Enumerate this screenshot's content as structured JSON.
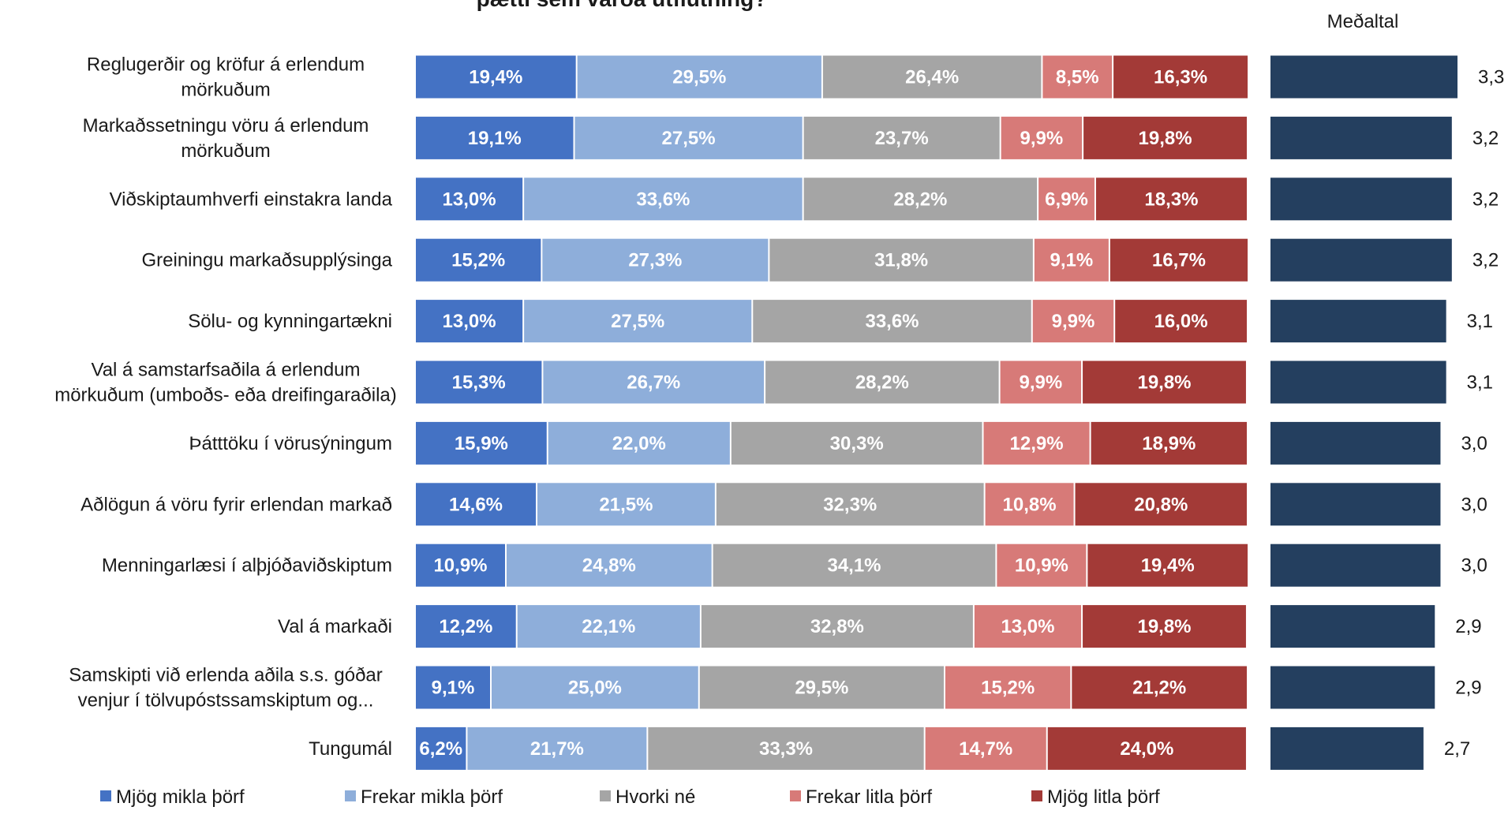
{
  "chart_data": [
    {
      "type": "bar",
      "orientation": "horizontal",
      "stacked": true,
      "normalized": true,
      "title": "þætti sem varða útflutning?",
      "categories": [
        [
          "Reglugerðir og kröfur á erlendum",
          "mörkuðum"
        ],
        [
          "Markaðssetningu vöru á erlendum",
          "mörkuðum"
        ],
        [
          "Viðskiptaumhverfi  einstakra landa"
        ],
        [
          "Greiningu markaðsupplýsinga"
        ],
        [
          "Sölu- og kynningartækni"
        ],
        [
          "Val á samstarfsaðila á erlendum",
          "mörkuðum (umboðs- eða dreifingaraðila)"
        ],
        [
          "Þátttöku í vörusýningum"
        ],
        [
          "Aðlögun á vöru fyrir erlendan markað"
        ],
        [
          "Menningarlæsi í alþjóðaviðskiptum"
        ],
        [
          "Val á markaði"
        ],
        [
          "Samskipti við erlenda aðila s.s. góðar",
          "venjur í tölvupóstssamskiptum og..."
        ],
        [
          "Tungumál"
        ]
      ],
      "series": [
        {
          "name": "Mjög mikla þörf",
          "color": "#4472C4",
          "values": [
            19.4,
            19.1,
            13.0,
            15.2,
            13.0,
            15.3,
            15.9,
            14.6,
            10.9,
            12.2,
            9.1,
            6.2
          ],
          "labels": [
            "19,4%",
            "19,1%",
            "13,0%",
            "15,2%",
            "13,0%",
            "15,3%",
            "15,9%",
            "14,6%",
            "10,9%",
            "12,2%",
            "9,1%",
            "6,2%"
          ]
        },
        {
          "name": "Frekar mikla þörf",
          "color": "#8EAEDA",
          "values": [
            29.5,
            27.5,
            33.6,
            27.3,
            27.5,
            26.7,
            22.0,
            21.5,
            24.8,
            22.1,
            25.0,
            21.7
          ],
          "labels": [
            "29,5%",
            "27,5%",
            "33,6%",
            "27,3%",
            "27,5%",
            "26,7%",
            "22,0%",
            "21,5%",
            "24,8%",
            "22,1%",
            "25,0%",
            "21,7%"
          ]
        },
        {
          "name": "Hvorki né",
          "color": "#A5A5A5",
          "values": [
            26.4,
            23.7,
            28.2,
            31.8,
            33.6,
            28.2,
            30.3,
            32.3,
            34.1,
            32.8,
            29.5,
            33.3
          ],
          "labels": [
            "26,4%",
            "23,7%",
            "28,2%",
            "31,8%",
            "33,6%",
            "28,2%",
            "30,3%",
            "32,3%",
            "34,1%",
            "32,8%",
            "29,5%",
            "33,3%"
          ]
        },
        {
          "name": "Frekar litla þörf",
          "color": "#D77A78",
          "values": [
            8.5,
            9.9,
            6.9,
            9.1,
            9.9,
            9.9,
            12.9,
            10.8,
            10.9,
            13.0,
            15.2,
            14.7
          ],
          "labels": [
            "8,5%",
            "9,9%",
            "6,9%",
            "9,1%",
            "9,9%",
            "9,9%",
            "12,9%",
            "10,8%",
            "10,9%",
            "13,0%",
            "15,2%",
            "14,7%"
          ]
        },
        {
          "name": "Mjög litla þörf",
          "color": "#A33A37",
          "values": [
            16.3,
            19.8,
            18.3,
            16.7,
            16.0,
            19.8,
            18.9,
            20.8,
            19.4,
            19.8,
            21.2,
            24.0
          ],
          "labels": [
            "16,3%",
            "19,8%",
            "18,3%",
            "16,7%",
            "16,0%",
            "19,8%",
            "18,9%",
            "20,8%",
            "19,4%",
            "19,8%",
            "21,2%",
            "24,0%"
          ]
        }
      ],
      "xlim": [
        0,
        100
      ],
      "legend_position": "bottom",
      "grid": false
    },
    {
      "type": "bar",
      "orientation": "horizontal",
      "title": "Meðaltal",
      "values": [
        3.3,
        3.2,
        3.2,
        3.2,
        3.1,
        3.1,
        3.0,
        3.0,
        3.0,
        2.9,
        2.9,
        2.7
      ],
      "labels": [
        "3,3",
        "3,2",
        "3,2",
        "3,2",
        "3,1",
        "3,1",
        "3,0",
        "3,0",
        "3,0",
        "2,9",
        "2,9",
        "2,7"
      ],
      "color": "#243F5F",
      "xlim": [
        0,
        3.3
      ],
      "grid": false
    }
  ]
}
